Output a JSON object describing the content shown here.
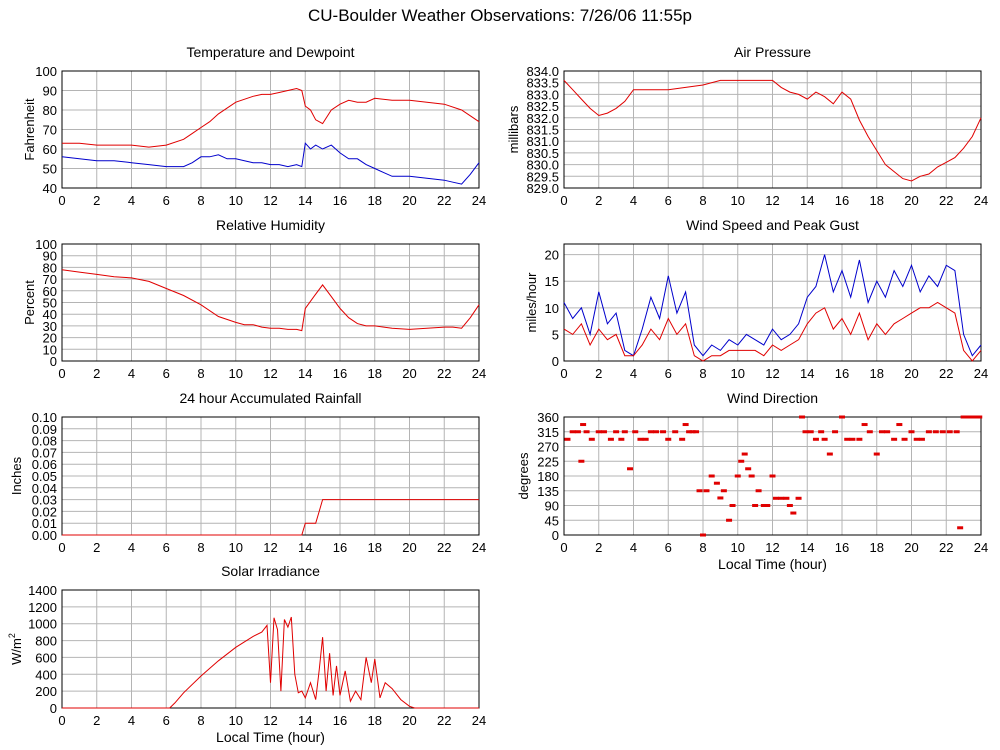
{
  "page": {
    "title": "CU-Boulder Weather Observations: 7/26/06 11:55p"
  },
  "colors": {
    "red": "#e00000",
    "blue": "#0000cc",
    "grid": "#b4b4b4",
    "axis": "#000000"
  },
  "chart_data": [
    {
      "id": "temperature",
      "type": "line",
      "title": "Temperature and Dewpoint",
      "xlabel": "",
      "ylabel": "Fahrenheit",
      "xlim": [
        0,
        24
      ],
      "ylim": [
        40,
        100
      ],
      "xticks": [
        "0",
        "2",
        "4",
        "6",
        "8",
        "10",
        "12",
        "14",
        "16",
        "18",
        "20",
        "22",
        "24"
      ],
      "yticks": [
        "40",
        "50",
        "60",
        "70",
        "80",
        "90",
        "100"
      ],
      "series": [
        {
          "name": "Temperature",
          "color": "red",
          "x": [
            0,
            1,
            2,
            3,
            4,
            5,
            6,
            7,
            7.5,
            8,
            8.5,
            9,
            10,
            11,
            11.5,
            12,
            12.5,
            13,
            13.5,
            13.8,
            14,
            14.3,
            14.6,
            15,
            15.5,
            16,
            16.5,
            17,
            17.5,
            18,
            19,
            20,
            21,
            22,
            23,
            23.5,
            24
          ],
          "y": [
            63,
            63,
            62,
            62,
            62,
            61,
            62,
            65,
            68,
            71,
            74,
            78,
            84,
            87,
            88,
            88,
            89,
            90,
            91,
            90,
            82,
            80,
            75,
            73,
            80,
            83,
            85,
            84,
            84,
            86,
            85,
            85,
            84,
            83,
            80,
            77,
            74
          ]
        },
        {
          "name": "Dewpoint",
          "color": "blue",
          "x": [
            0,
            1,
            2,
            3,
            4,
            5,
            6,
            7,
            7.5,
            8,
            8.5,
            9,
            9.5,
            10,
            10.5,
            11,
            11.5,
            12,
            12.5,
            13,
            13.5,
            13.8,
            14,
            14.3,
            14.6,
            15,
            15.5,
            16,
            16.5,
            17,
            17.5,
            18,
            18.5,
            19,
            20,
            21,
            22,
            22.5,
            23,
            23.5,
            24
          ],
          "y": [
            56,
            55,
            54,
            54,
            53,
            52,
            51,
            51,
            53,
            56,
            56,
            57,
            55,
            55,
            54,
            53,
            53,
            52,
            52,
            51,
            52,
            51,
            63,
            60,
            62,
            60,
            62,
            58,
            55,
            55,
            52,
            50,
            48,
            46,
            46,
            45,
            44,
            43,
            42,
            47,
            53
          ]
        }
      ]
    },
    {
      "id": "pressure",
      "type": "line",
      "title": "Air Pressure",
      "xlabel": "",
      "ylabel": "millibars",
      "xlim": [
        0,
        24
      ],
      "ylim": [
        829.0,
        834.0
      ],
      "xticks": [
        "0",
        "2",
        "4",
        "6",
        "8",
        "10",
        "12",
        "14",
        "16",
        "18",
        "20",
        "22",
        "24"
      ],
      "yticks": [
        "829.0",
        "829.5",
        "830.0",
        "830.5",
        "831.0",
        "831.5",
        "832.0",
        "832.5",
        "833.0",
        "833.5",
        "834.0"
      ],
      "series": [
        {
          "name": "Pressure",
          "color": "red",
          "x": [
            0,
            0.5,
            1,
            1.5,
            2,
            2.5,
            3,
            3.5,
            4,
            5,
            6,
            7,
            8,
            9,
            10,
            11,
            12,
            12.5,
            13,
            13.5,
            14,
            14.5,
            15,
            15.5,
            16,
            16.5,
            17,
            17.5,
            18,
            18.5,
            19,
            19.5,
            20,
            20.5,
            21,
            21.5,
            22,
            22.5,
            23,
            23.5,
            24
          ],
          "y": [
            833.6,
            833.2,
            832.8,
            832.4,
            832.1,
            832.2,
            832.4,
            832.7,
            833.2,
            833.2,
            833.2,
            833.3,
            833.4,
            833.6,
            833.6,
            833.6,
            833.6,
            833.3,
            833.1,
            833.0,
            832.8,
            833.1,
            832.9,
            832.6,
            833.1,
            832.8,
            831.9,
            831.2,
            830.6,
            830.0,
            829.7,
            829.4,
            829.3,
            829.5,
            829.6,
            829.9,
            830.1,
            830.3,
            830.7,
            831.2,
            832.0
          ]
        }
      ]
    },
    {
      "id": "humidity",
      "type": "line",
      "title": "Relative Humidity",
      "xlabel": "",
      "ylabel": "Percent",
      "xlim": [
        0,
        24
      ],
      "ylim": [
        0,
        100
      ],
      "xticks": [
        "0",
        "2",
        "4",
        "6",
        "8",
        "10",
        "12",
        "14",
        "16",
        "18",
        "20",
        "22",
        "24"
      ],
      "yticks": [
        "0",
        "10",
        "20",
        "30",
        "40",
        "50",
        "60",
        "70",
        "80",
        "90",
        "100"
      ],
      "series": [
        {
          "name": "Humidity",
          "color": "red",
          "x": [
            0,
            1,
            2,
            3,
            4,
            5,
            6,
            7,
            8,
            9,
            10,
            10.5,
            11,
            11.5,
            12,
            12.5,
            13,
            13.5,
            13.8,
            14,
            14.5,
            15,
            15.5,
            16,
            16.5,
            17,
            17.5,
            18,
            19,
            20,
            21,
            22,
            22.5,
            23,
            23.5,
            24
          ],
          "y": [
            78,
            76,
            74,
            72,
            71,
            68,
            62,
            56,
            48,
            38,
            33,
            31,
            31,
            29,
            28,
            28,
            27,
            27,
            26,
            45,
            55,
            65,
            55,
            45,
            37,
            32,
            30,
            30,
            28,
            27,
            28,
            29,
            29,
            28,
            37,
            48
          ]
        }
      ]
    },
    {
      "id": "wind",
      "type": "line",
      "title": "Wind Speed and Peak Gust",
      "xlabel": "",
      "ylabel": "miles/hour",
      "xlim": [
        0,
        24
      ],
      "ylim": [
        0,
        22
      ],
      "xticks": [
        "0",
        "2",
        "4",
        "6",
        "8",
        "10",
        "12",
        "14",
        "16",
        "18",
        "20",
        "22",
        "24"
      ],
      "yticks": [
        "0",
        "5",
        "10",
        "15",
        "20"
      ],
      "series": [
        {
          "name": "Peak Gust",
          "color": "blue",
          "x": [
            0,
            0.5,
            1,
            1.5,
            2,
            2.5,
            3,
            3.5,
            4,
            4.5,
            5,
            5.5,
            6,
            6.5,
            7,
            7.5,
            8,
            8.5,
            9,
            9.5,
            10,
            10.5,
            11,
            11.5,
            12,
            12.5,
            13,
            13.5,
            14,
            14.5,
            15,
            15.5,
            16,
            16.5,
            17,
            17.5,
            18,
            18.5,
            19,
            19.5,
            20,
            20.5,
            21,
            21.5,
            22,
            22.5,
            23,
            23.5,
            24
          ],
          "y": [
            11,
            8,
            10,
            5,
            13,
            7,
            9,
            2,
            1,
            6,
            12,
            8,
            16,
            9,
            13,
            3,
            1,
            3,
            2,
            4,
            3,
            5,
            4,
            3,
            6,
            4,
            5,
            7,
            12,
            14,
            20,
            13,
            17,
            12,
            19,
            11,
            15,
            12,
            17,
            14,
            18,
            13,
            16,
            14,
            18,
            17,
            5,
            1,
            3
          ]
        },
        {
          "name": "Wind Speed",
          "color": "red",
          "x": [
            0,
            0.5,
            1,
            1.5,
            2,
            2.5,
            3,
            3.5,
            4,
            4.5,
            5,
            5.5,
            6,
            6.5,
            7,
            7.5,
            8,
            8.5,
            9,
            9.5,
            10,
            10.5,
            11,
            11.5,
            12,
            12.5,
            13,
            13.5,
            14,
            14.5,
            15,
            15.5,
            16,
            16.5,
            17,
            17.5,
            18,
            18.5,
            19,
            19.5,
            20,
            20.5,
            21,
            21.5,
            22,
            22.5,
            23,
            23.5,
            24
          ],
          "y": [
            6,
            5,
            7,
            3,
            6,
            4,
            5,
            1,
            1,
            3,
            6,
            4,
            8,
            5,
            7,
            1,
            0,
            1,
            1,
            2,
            2,
            2,
            2,
            1,
            3,
            2,
            3,
            4,
            7,
            9,
            10,
            6,
            8,
            5,
            9,
            4,
            7,
            5,
            7,
            8,
            9,
            10,
            10,
            11,
            10,
            9,
            2,
            0,
            2
          ]
        }
      ]
    },
    {
      "id": "rainfall",
      "type": "line",
      "title": "24 hour Accumulated Rainfall",
      "xlabel": "",
      "ylabel": "Inches",
      "xlim": [
        0,
        24
      ],
      "ylim": [
        0,
        0.1
      ],
      "xticks": [
        "0",
        "2",
        "4",
        "6",
        "8",
        "10",
        "12",
        "14",
        "16",
        "18",
        "20",
        "22",
        "24"
      ],
      "yticks": [
        "0.00",
        "0.01",
        "0.02",
        "0.03",
        "0.04",
        "0.05",
        "0.06",
        "0.07",
        "0.08",
        "0.09",
        "0.10"
      ],
      "series": [
        {
          "name": "Rainfall",
          "color": "red",
          "x": [
            0,
            13.8,
            14.0,
            14.6,
            14.8,
            15.0,
            24
          ],
          "y": [
            0,
            0,
            0.01,
            0.01,
            0.02,
            0.03,
            0.03
          ]
        }
      ]
    },
    {
      "id": "winddir",
      "type": "scatter",
      "title": "Wind Direction",
      "xlabel": "Local Time (hour)",
      "ylabel": "degrees",
      "xlim": [
        0,
        24
      ],
      "ylim": [
        0,
        360
      ],
      "xticks": [
        "0",
        "2",
        "4",
        "6",
        "8",
        "10",
        "12",
        "14",
        "16",
        "18",
        "20",
        "22",
        "24"
      ],
      "yticks": [
        "0",
        "45",
        "90",
        "135",
        "180",
        "225",
        "270",
        "315",
        "360"
      ],
      "series": [
        {
          "name": "Direction",
          "color": "red",
          "x": [
            0.2,
            0.5,
            0.8,
            1.0,
            1.1,
            1.3,
            1.6,
            2.0,
            2.3,
            2.7,
            3.0,
            3.3,
            3.5,
            3.8,
            4.1,
            4.4,
            4.7,
            5.0,
            5.3,
            5.7,
            6.0,
            6.4,
            6.8,
            7.0,
            7.2,
            7.4,
            7.6,
            7.8,
            8.0,
            8.2,
            8.5,
            8.8,
            9.0,
            9.2,
            9.5,
            9.7,
            10.0,
            10.2,
            10.4,
            10.6,
            10.8,
            11.0,
            11.2,
            11.5,
            11.7,
            12.0,
            12.2,
            12.5,
            12.8,
            13.0,
            13.2,
            13.5,
            13.7,
            13.9,
            14.2,
            14.5,
            14.8,
            15.0,
            15.3,
            15.6,
            16.0,
            16.3,
            16.6,
            17.0,
            17.3,
            17.6,
            18.0,
            18.3,
            18.6,
            19.0,
            19.3,
            19.6,
            20.0,
            20.3,
            20.6,
            21.0,
            21.4,
            21.8,
            22.2,
            22.6,
            22.8,
            23.0,
            23.3,
            23.5,
            23.7,
            23.9
          ],
          "y": [
            292,
            315,
            315,
            225,
            337,
            315,
            292,
            315,
            315,
            292,
            315,
            292,
            315,
            202,
            315,
            292,
            292,
            315,
            315,
            315,
            292,
            315,
            292,
            337,
            315,
            315,
            315,
            135,
            0,
            135,
            180,
            158,
            113,
            135,
            45,
            90,
            180,
            225,
            247,
            202,
            180,
            90,
            135,
            90,
            90,
            180,
            112,
            112,
            112,
            90,
            67,
            112,
            360,
            315,
            315,
            292,
            315,
            292,
            247,
            315,
            360,
            292,
            292,
            292,
            337,
            315,
            247,
            315,
            315,
            292,
            337,
            292,
            315,
            292,
            292,
            315,
            315,
            315,
            315,
            315,
            22,
            360,
            360,
            360,
            360,
            360
          ]
        }
      ]
    },
    {
      "id": "solar",
      "type": "line",
      "title": "Solar Irradiance",
      "xlabel": "Local Time (hour)",
      "ylabel": "W/m",
      "ylabel_sup": "2",
      "xlim": [
        0,
        24
      ],
      "ylim": [
        0,
        1400
      ],
      "xticks": [
        "0",
        "2",
        "4",
        "6",
        "8",
        "10",
        "12",
        "14",
        "16",
        "18",
        "20",
        "22",
        "24"
      ],
      "yticks": [
        "0",
        "200",
        "400",
        "600",
        "800",
        "1000",
        "1200",
        "1400"
      ],
      "series": [
        {
          "name": "Irradiance",
          "color": "red",
          "x": [
            0,
            6.2,
            6.5,
            7,
            8,
            9,
            10,
            11,
            11.5,
            11.8,
            12.0,
            12.2,
            12.4,
            12.6,
            12.8,
            13.0,
            13.2,
            13.4,
            13.6,
            13.8,
            14.0,
            14.3,
            14.6,
            14.8,
            15.0,
            15.2,
            15.4,
            15.6,
            15.8,
            16.0,
            16.3,
            16.6,
            16.9,
            17.2,
            17.5,
            17.8,
            18.0,
            18.3,
            18.6,
            19.0,
            19.5,
            20,
            20.3,
            24
          ],
          "y": [
            0,
            0,
            60,
            180,
            380,
            560,
            720,
            850,
            900,
            980,
            300,
            1070,
            930,
            200,
            1050,
            960,
            1080,
            400,
            180,
            200,
            120,
            300,
            100,
            450,
            840,
            200,
            650,
            150,
            500,
            150,
            440,
            80,
            200,
            100,
            600,
            300,
            580,
            120,
            300,
            230,
            100,
            20,
            0,
            0
          ]
        }
      ]
    }
  ]
}
